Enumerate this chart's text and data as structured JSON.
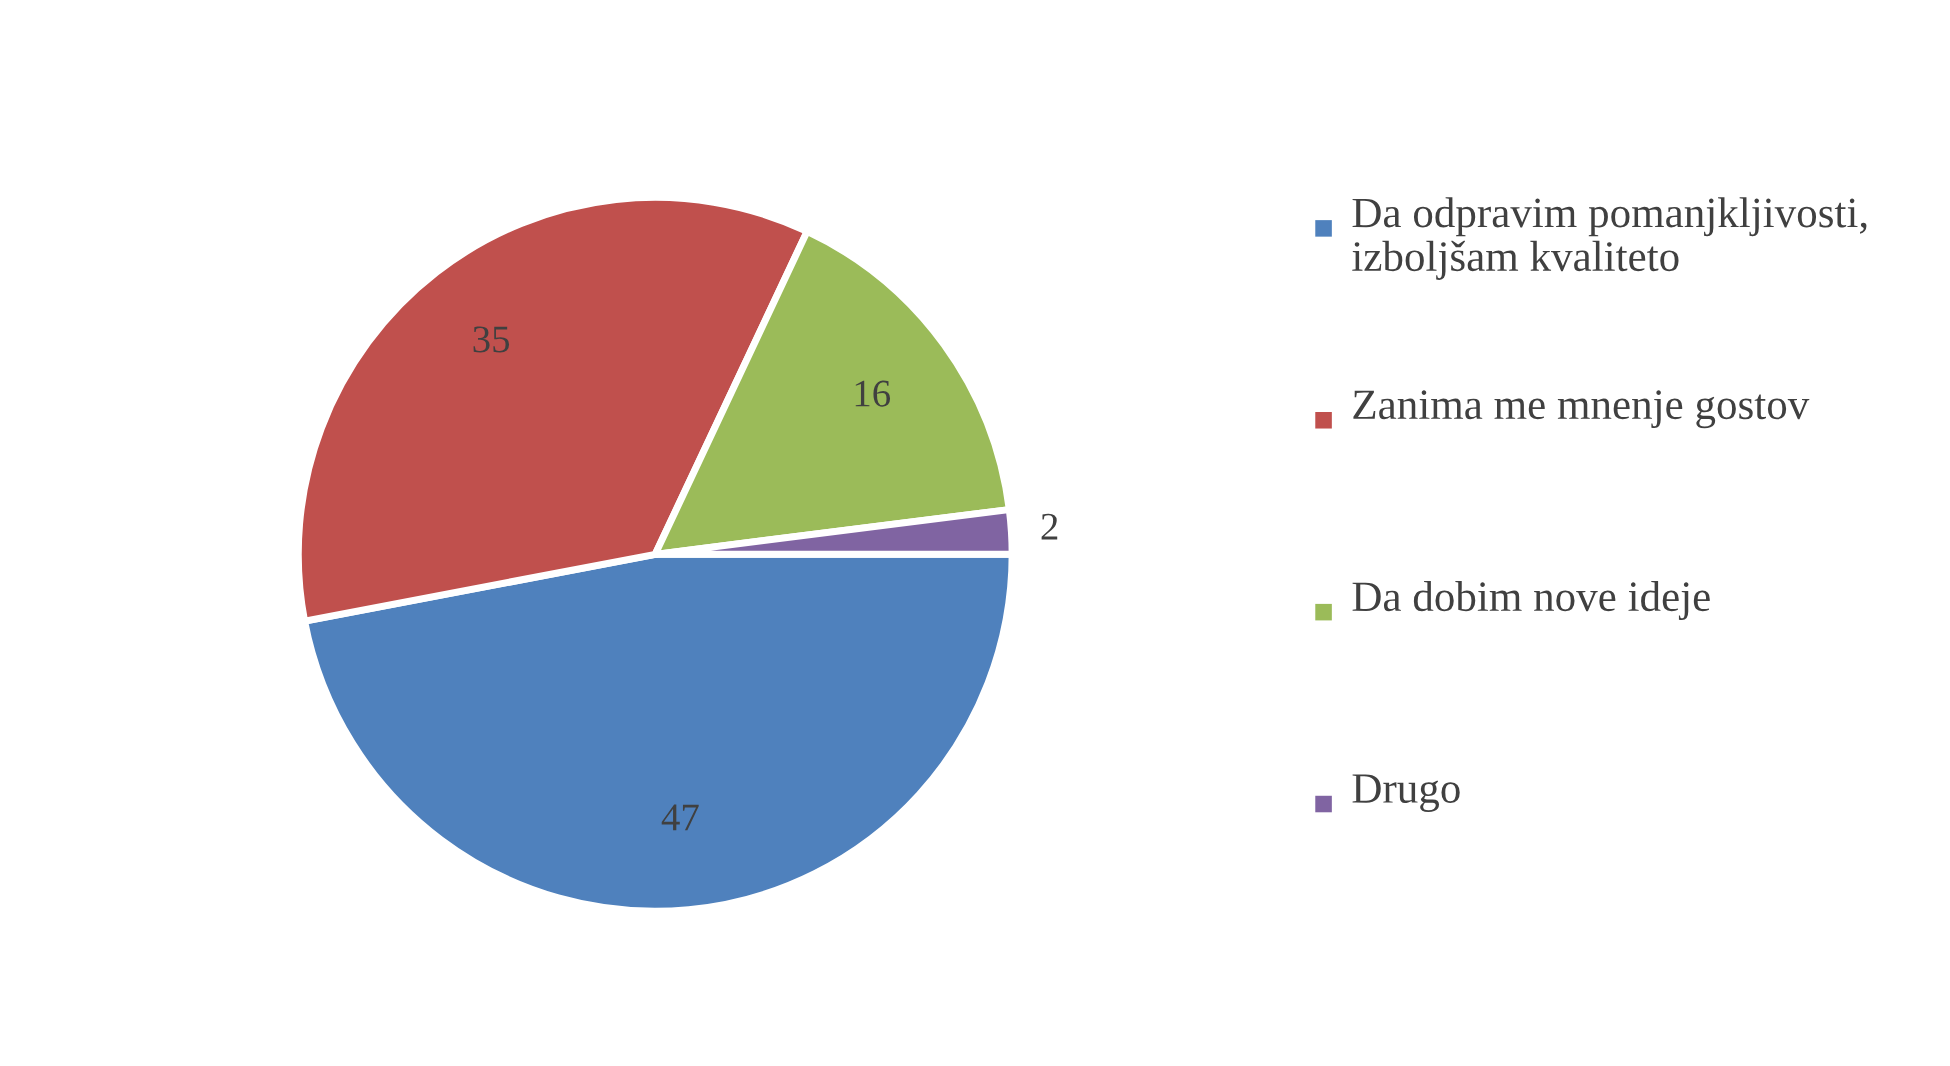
{
  "chart_data": {
    "type": "pie",
    "categories": [
      "Da odpravim pomanjkljivosti, izboljšam kvaliteto",
      "Zanima me mnenje gostov",
      "Da dobim nove ideje",
      "Drugo"
    ],
    "values": [
      47,
      35,
      16,
      2
    ],
    "colors": [
      "#4f81bd",
      "#c0504d",
      "#9bbb59",
      "#8064a2"
    ],
    "data_labels": true,
    "legend": "right"
  }
}
